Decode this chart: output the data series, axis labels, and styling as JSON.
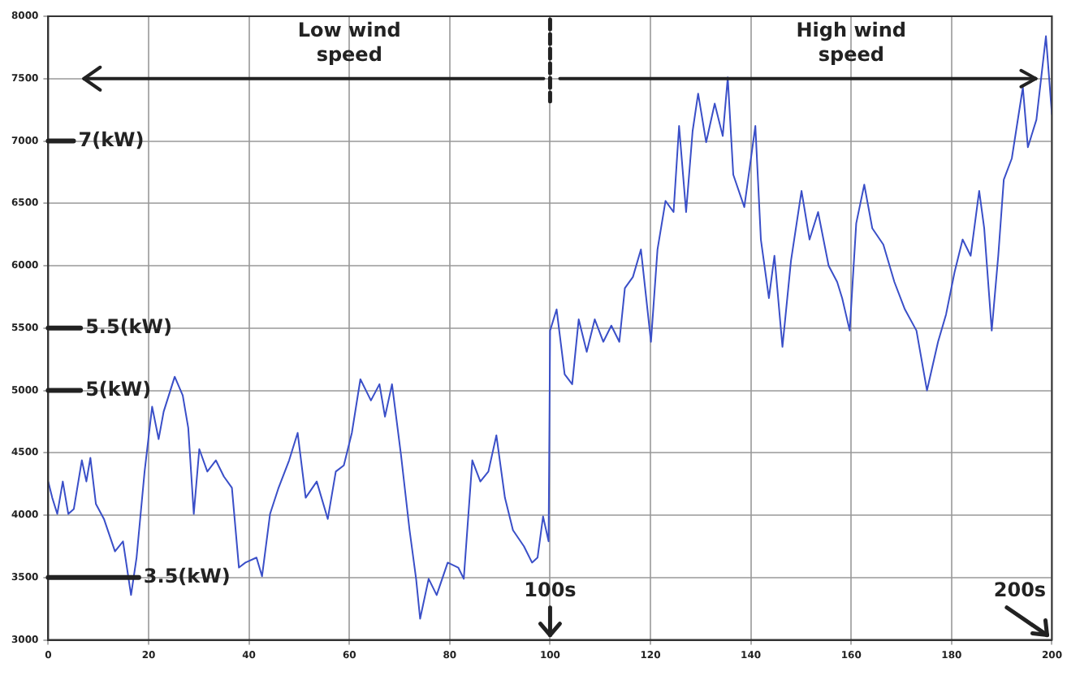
{
  "chart_data": {
    "type": "line",
    "x": [
      0,
      0.8,
      1.8,
      2.9,
      4,
      5.1,
      6.7,
      7.6,
      8.4,
      9.5,
      11.1,
      12.2,
      13.3,
      14.9,
      16.5,
      17.6,
      19.2,
      20.7,
      22,
      23,
      25.2,
      26.8,
      27.9,
      29,
      30.1,
      31.7,
      33.4,
      35,
      36.6,
      38,
      39.3,
      41.5,
      42.6,
      44.2,
      45.9,
      48,
      49.7,
      51.3,
      53.5,
      55.7,
      57.3,
      58.9,
      60.5,
      62.2,
      64.3,
      66,
      67.1,
      68.5,
      70.3,
      72,
      73.3,
      74.1,
      75.8,
      77.4,
      79.6,
      81.7,
      82.8,
      84.5,
      86.1,
      87.7,
      89.3,
      91,
      92.6,
      94.8,
      96.4,
      97.5,
      98.6,
      99.7,
      100,
      101.3,
      102.9,
      104.4,
      105.7,
      107.3,
      108.9,
      110.6,
      112.2,
      113.8,
      114.9,
      116.5,
      118.1,
      120.1,
      121.4,
      123,
      124.6,
      125.7,
      127.1,
      128.4,
      129.5,
      131.1,
      132.8,
      134.4,
      135.4,
      136.5,
      138.7,
      140.9,
      142,
      143.6,
      144.7,
      146.3,
      148,
      150.1,
      151.7,
      153.4,
      155.5,
      157.2,
      158.2,
      159.7,
      161,
      162.6,
      164.2,
      166.4,
      168.6,
      170.7,
      173,
      175.1,
      177.3,
      178.9,
      180.6,
      182.2,
      183.8,
      185.5,
      186.5,
      188,
      189.3,
      190.4,
      192,
      194.2,
      195.2,
      196.9,
      198.8,
      200
    ],
    "series": [
      {
        "color": "#3a4fc8",
        "values": [
          4270,
          4140,
          4010,
          4270,
          4010,
          4050,
          4440,
          4270,
          4460,
          4090,
          3970,
          3840,
          3710,
          3790,
          3360,
          3660,
          4350,
          4870,
          4610,
          4830,
          5110,
          4960,
          4700,
          4010,
          4530,
          4350,
          4440,
          4310,
          4220,
          3580,
          3620,
          3660,
          3510,
          4010,
          4220,
          4440,
          4660,
          4140,
          4270,
          3970,
          4350,
          4400,
          4660,
          5090,
          4920,
          5050,
          4790,
          5050,
          4480,
          3880,
          3490,
          3170,
          3490,
          3360,
          3620,
          3580,
          3490,
          4440,
          4270,
          4350,
          4640,
          4140,
          3880,
          3750,
          3620,
          3660,
          3990,
          3790,
          5480,
          5650,
          5130,
          5050,
          5570,
          5310,
          5570,
          5390,
          5520,
          5390,
          5820,
          5910,
          6130,
          5390,
          6130,
          6520,
          6430,
          7120,
          6430,
          7080,
          7380,
          6990,
          7300,
          7040,
          7510,
          6730,
          6470,
          7120,
          6210,
          5740,
          6080,
          5350,
          6040,
          6600,
          6210,
          6430,
          6000,
          5870,
          5740,
          5480,
          6340,
          6650,
          6300,
          6170,
          5870,
          5650,
          5480,
          5000,
          5390,
          5610,
          5950,
          6210,
          6080,
          6600,
          6300,
          5480,
          6080,
          6690,
          6860,
          7430,
          6950,
          7170,
          7840,
          7210
        ]
      }
    ],
    "xlim": [
      0,
      200
    ],
    "xticks": [
      0,
      20,
      40,
      60,
      80,
      100,
      120,
      140,
      160,
      180,
      200
    ],
    "ylim": [
      3000,
      8000
    ],
    "yticks": [
      3000,
      3500,
      4000,
      4500,
      5000,
      5500,
      6000,
      6500,
      7000,
      7500,
      8000
    ],
    "grid": true,
    "marker": "none",
    "line_style": "solid",
    "annotations": [
      "Low wind speed",
      "High wind speed",
      "7(kW)",
      "5.5(kW)",
      "5(kW)",
      "3.5(kW)",
      "100s",
      "200s"
    ]
  }
}
